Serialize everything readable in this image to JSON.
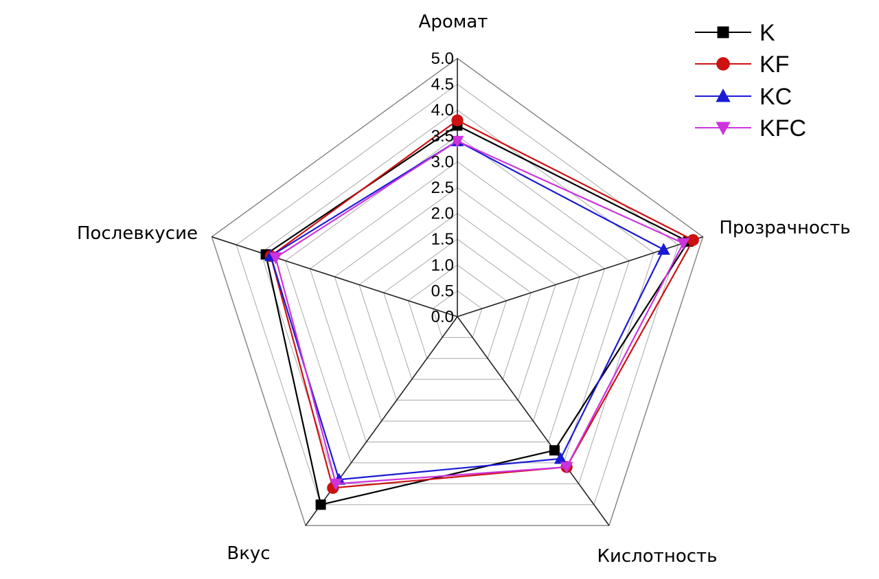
{
  "chart_data": {
    "type": "radar",
    "axes": [
      "Аромат",
      "Прозрачность",
      "Кислотность",
      "Вкус",
      "Послевкусие"
    ],
    "scale": {
      "min": 0.0,
      "max": 5.0,
      "step": 0.5
    },
    "tick_labels": [
      "0.0",
      "0.5",
      "1.0",
      "1.5",
      "2.0",
      "2.5",
      "3.0",
      "3.5",
      "4.0",
      "4.5",
      "5.0"
    ],
    "grid": true,
    "legend_position": "top-right",
    "series": [
      {
        "name": "K",
        "marker": "square",
        "color": "#000000",
        "values": [
          3.7,
          4.7,
          3.2,
          4.5,
          3.9
        ]
      },
      {
        "name": "KF",
        "marker": "circle",
        "color": "#cc1111",
        "values": [
          3.8,
          4.8,
          3.6,
          4.1,
          3.8
        ]
      },
      {
        "name": "KC",
        "marker": "triangle-up",
        "color": "#1a1ad4",
        "values": [
          3.4,
          4.2,
          3.4,
          3.9,
          3.8
        ]
      },
      {
        "name": "KFC",
        "marker": "triangle-down",
        "color": "#cc33dd",
        "values": [
          3.4,
          4.6,
          3.6,
          4.0,
          3.7
        ]
      }
    ]
  }
}
